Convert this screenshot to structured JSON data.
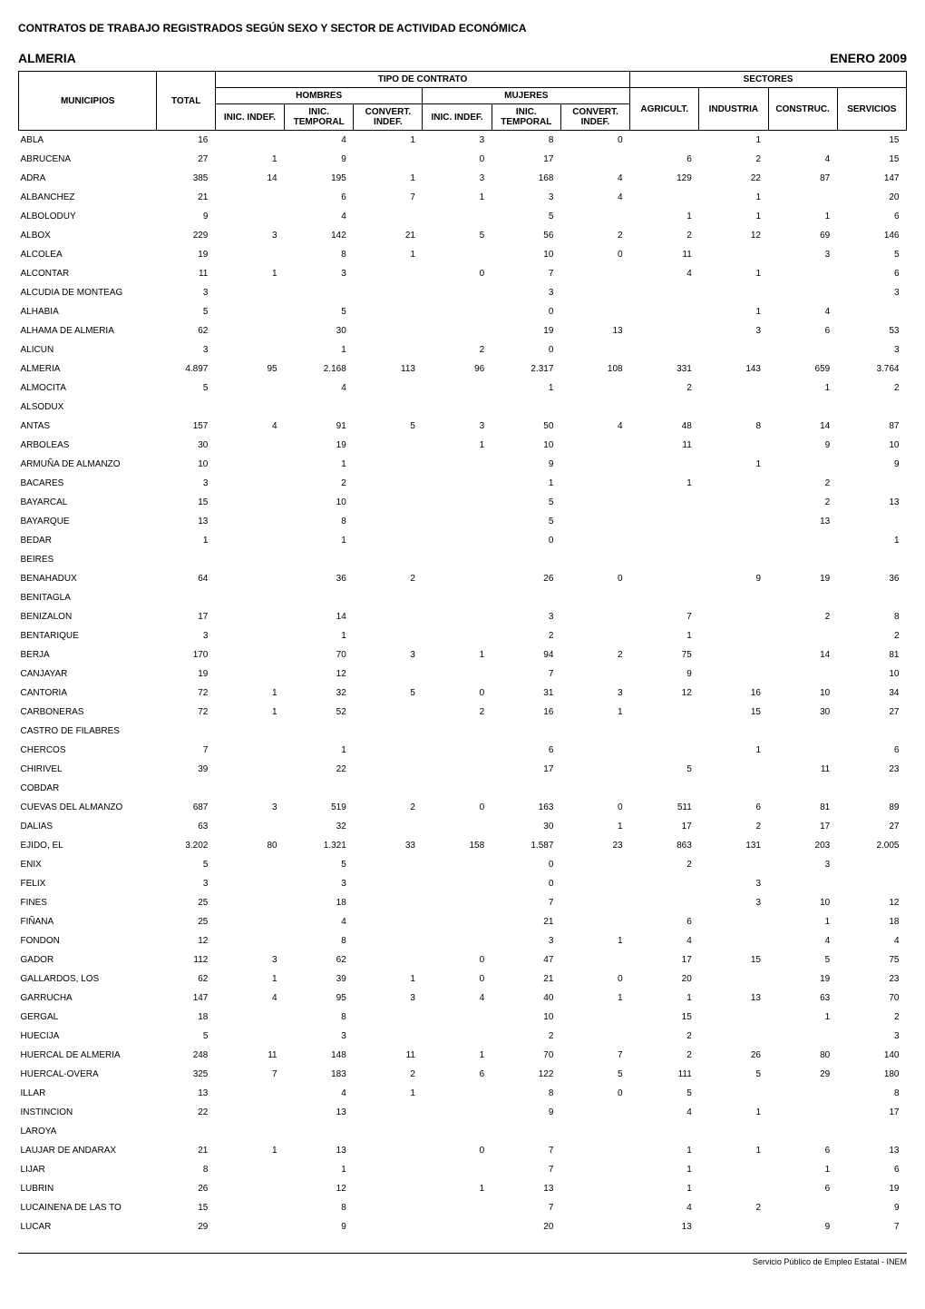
{
  "page_title": "CONTRATOS DE TRABAJO REGISTRADOS SEGÚN SEXO Y SECTOR DE ACTIVIDAD ECONÓMICA",
  "region": "ALMERIA",
  "period": "ENERO 2009",
  "footer": "Servicio Público de Empleo Estatal - INEM",
  "headers": {
    "tipo": "TIPO DE CONTRATO",
    "sectores": "SECTORES",
    "total": "TOTAL",
    "hombres": "HOMBRES",
    "mujeres": "MUJERES",
    "municipios": "MUNICIPIOS",
    "inic_indef": "INIC. INDEF.",
    "inic_temporal": "INIC. TEMPORAL",
    "convert_indef": "CONVERT. INDEF.",
    "agricult": "AGRICULT.",
    "industria": "INDUSTRIA",
    "construc": "CONSTRUC.",
    "servicios": "SERVICIOS"
  },
  "rows": [
    {
      "name": "ABLA",
      "total": 16,
      "h_ii": null,
      "h_it": 4,
      "h_ci": 1,
      "m_ii": 3,
      "m_it": 8,
      "m_ci": 0,
      "ag": null,
      "in": 1,
      "co": null,
      "se": 15
    },
    {
      "name": "ABRUCENA",
      "total": 27,
      "h_ii": 1,
      "h_it": 9,
      "h_ci": null,
      "m_ii": 0,
      "m_it": 17,
      "m_ci": null,
      "ag": 6,
      "in": 2,
      "co": 4,
      "se": 15
    },
    {
      "name": "ADRA",
      "total": 385,
      "h_ii": 14,
      "h_it": 195,
      "h_ci": 1,
      "m_ii": 3,
      "m_it": 168,
      "m_ci": 4,
      "ag": 129,
      "in": 22,
      "co": 87,
      "se": 147
    },
    {
      "name": "ALBANCHEZ",
      "total": 21,
      "h_ii": null,
      "h_it": 6,
      "h_ci": 7,
      "m_ii": 1,
      "m_it": 3,
      "m_ci": 4,
      "ag": null,
      "in": 1,
      "co": null,
      "se": 20
    },
    {
      "name": "ALBOLODUY",
      "total": 9,
      "h_ii": null,
      "h_it": 4,
      "h_ci": null,
      "m_ii": null,
      "m_it": 5,
      "m_ci": null,
      "ag": 1,
      "in": 1,
      "co": 1,
      "se": 6
    },
    {
      "name": "ALBOX",
      "total": 229,
      "h_ii": 3,
      "h_it": 142,
      "h_ci": 21,
      "m_ii": 5,
      "m_it": 56,
      "m_ci": 2,
      "ag": 2,
      "in": 12,
      "co": 69,
      "se": 146
    },
    {
      "name": "ALCOLEA",
      "total": 19,
      "h_ii": null,
      "h_it": 8,
      "h_ci": 1,
      "m_ii": null,
      "m_it": 10,
      "m_ci": 0,
      "ag": 11,
      "in": null,
      "co": 3,
      "se": 5
    },
    {
      "name": "ALCONTAR",
      "total": 11,
      "h_ii": 1,
      "h_it": 3,
      "h_ci": null,
      "m_ii": 0,
      "m_it": 7,
      "m_ci": null,
      "ag": 4,
      "in": 1,
      "co": null,
      "se": 6
    },
    {
      "name": "ALCUDIA DE MONTEAG",
      "total": 3,
      "h_ii": null,
      "h_it": null,
      "h_ci": null,
      "m_ii": null,
      "m_it": 3,
      "m_ci": null,
      "ag": null,
      "in": null,
      "co": null,
      "se": 3
    },
    {
      "name": "ALHABIA",
      "total": 5,
      "h_ii": null,
      "h_it": 5,
      "h_ci": null,
      "m_ii": null,
      "m_it": 0,
      "m_ci": null,
      "ag": null,
      "in": 1,
      "co": 4,
      "se": null
    },
    {
      "name": "ALHAMA DE ALMERIA",
      "total": 62,
      "h_ii": null,
      "h_it": 30,
      "h_ci": null,
      "m_ii": null,
      "m_it": 19,
      "m_ci": 13,
      "ag": null,
      "in": 3,
      "co": 6,
      "se": 53
    },
    {
      "name": "ALICUN",
      "total": 3,
      "h_ii": null,
      "h_it": 1,
      "h_ci": null,
      "m_ii": 2,
      "m_it": 0,
      "m_ci": null,
      "ag": null,
      "in": null,
      "co": null,
      "se": 3
    },
    {
      "name": "ALMERIA",
      "total": "4.897",
      "h_ii": 95,
      "h_it": "2.168",
      "h_ci": 113,
      "m_ii": 96,
      "m_it": "2.317",
      "m_ci": 108,
      "ag": 331,
      "in": 143,
      "co": 659,
      "se": "3.764"
    },
    {
      "name": "ALMOCITA",
      "total": 5,
      "h_ii": null,
      "h_it": 4,
      "h_ci": null,
      "m_ii": null,
      "m_it": 1,
      "m_ci": null,
      "ag": 2,
      "in": null,
      "co": 1,
      "se": 2
    },
    {
      "name": "ALSODUX",
      "total": null,
      "h_ii": null,
      "h_it": null,
      "h_ci": null,
      "m_ii": null,
      "m_it": null,
      "m_ci": null,
      "ag": null,
      "in": null,
      "co": null,
      "se": null
    },
    {
      "name": "ANTAS",
      "total": 157,
      "h_ii": 4,
      "h_it": 91,
      "h_ci": 5,
      "m_ii": 3,
      "m_it": 50,
      "m_ci": 4,
      "ag": 48,
      "in": 8,
      "co": 14,
      "se": 87
    },
    {
      "name": "ARBOLEAS",
      "total": 30,
      "h_ii": null,
      "h_it": 19,
      "h_ci": null,
      "m_ii": 1,
      "m_it": 10,
      "m_ci": null,
      "ag": 11,
      "in": null,
      "co": 9,
      "se": 10
    },
    {
      "name": "ARMUÑA DE ALMANZO",
      "total": 10,
      "h_ii": null,
      "h_it": 1,
      "h_ci": null,
      "m_ii": null,
      "m_it": 9,
      "m_ci": null,
      "ag": null,
      "in": 1,
      "co": null,
      "se": 9
    },
    {
      "name": "BACARES",
      "total": 3,
      "h_ii": null,
      "h_it": 2,
      "h_ci": null,
      "m_ii": null,
      "m_it": 1,
      "m_ci": null,
      "ag": 1,
      "in": null,
      "co": 2,
      "se": null
    },
    {
      "name": "BAYARCAL",
      "total": 15,
      "h_ii": null,
      "h_it": 10,
      "h_ci": null,
      "m_ii": null,
      "m_it": 5,
      "m_ci": null,
      "ag": null,
      "in": null,
      "co": 2,
      "se": 13
    },
    {
      "name": "BAYARQUE",
      "total": 13,
      "h_ii": null,
      "h_it": 8,
      "h_ci": null,
      "m_ii": null,
      "m_it": 5,
      "m_ci": null,
      "ag": null,
      "in": null,
      "co": 13,
      "se": null
    },
    {
      "name": "BEDAR",
      "total": 1,
      "h_ii": null,
      "h_it": 1,
      "h_ci": null,
      "m_ii": null,
      "m_it": 0,
      "m_ci": null,
      "ag": null,
      "in": null,
      "co": null,
      "se": 1
    },
    {
      "name": "BEIRES",
      "total": null,
      "h_ii": null,
      "h_it": null,
      "h_ci": null,
      "m_ii": null,
      "m_it": null,
      "m_ci": null,
      "ag": null,
      "in": null,
      "co": null,
      "se": null
    },
    {
      "name": "BENAHADUX",
      "total": 64,
      "h_ii": null,
      "h_it": 36,
      "h_ci": 2,
      "m_ii": null,
      "m_it": 26,
      "m_ci": 0,
      "ag": null,
      "in": 9,
      "co": 19,
      "se": 36
    },
    {
      "name": "BENITAGLA",
      "total": null,
      "h_ii": null,
      "h_it": null,
      "h_ci": null,
      "m_ii": null,
      "m_it": null,
      "m_ci": null,
      "ag": null,
      "in": null,
      "co": null,
      "se": null
    },
    {
      "name": "BENIZALON",
      "total": 17,
      "h_ii": null,
      "h_it": 14,
      "h_ci": null,
      "m_ii": null,
      "m_it": 3,
      "m_ci": null,
      "ag": 7,
      "in": null,
      "co": 2,
      "se": 8
    },
    {
      "name": "BENTARIQUE",
      "total": 3,
      "h_ii": null,
      "h_it": 1,
      "h_ci": null,
      "m_ii": null,
      "m_it": 2,
      "m_ci": null,
      "ag": 1,
      "in": null,
      "co": null,
      "se": 2
    },
    {
      "name": "BERJA",
      "total": 170,
      "h_ii": null,
      "h_it": 70,
      "h_ci": 3,
      "m_ii": 1,
      "m_it": 94,
      "m_ci": 2,
      "ag": 75,
      "in": null,
      "co": 14,
      "se": 81
    },
    {
      "name": "CANJAYAR",
      "total": 19,
      "h_ii": null,
      "h_it": 12,
      "h_ci": null,
      "m_ii": null,
      "m_it": 7,
      "m_ci": null,
      "ag": 9,
      "in": null,
      "co": null,
      "se": 10
    },
    {
      "name": "CANTORIA",
      "total": 72,
      "h_ii": 1,
      "h_it": 32,
      "h_ci": 5,
      "m_ii": 0,
      "m_it": 31,
      "m_ci": 3,
      "ag": 12,
      "in": 16,
      "co": 10,
      "se": 34
    },
    {
      "name": "CARBONERAS",
      "total": 72,
      "h_ii": 1,
      "h_it": 52,
      "h_ci": null,
      "m_ii": 2,
      "m_it": 16,
      "m_ci": 1,
      "ag": null,
      "in": 15,
      "co": 30,
      "se": 27
    },
    {
      "name": "CASTRO DE FILABRES",
      "total": null,
      "h_ii": null,
      "h_it": null,
      "h_ci": null,
      "m_ii": null,
      "m_it": null,
      "m_ci": null,
      "ag": null,
      "in": null,
      "co": null,
      "se": null
    },
    {
      "name": "CHERCOS",
      "total": 7,
      "h_ii": null,
      "h_it": 1,
      "h_ci": null,
      "m_ii": null,
      "m_it": 6,
      "m_ci": null,
      "ag": null,
      "in": 1,
      "co": null,
      "se": 6
    },
    {
      "name": "CHIRIVEL",
      "total": 39,
      "h_ii": null,
      "h_it": 22,
      "h_ci": null,
      "m_ii": null,
      "m_it": 17,
      "m_ci": null,
      "ag": 5,
      "in": null,
      "co": 11,
      "se": 23
    },
    {
      "name": "COBDAR",
      "total": null,
      "h_ii": null,
      "h_it": null,
      "h_ci": null,
      "m_ii": null,
      "m_it": null,
      "m_ci": null,
      "ag": null,
      "in": null,
      "co": null,
      "se": null
    },
    {
      "name": "CUEVAS DEL ALMANZO",
      "total": 687,
      "h_ii": 3,
      "h_it": 519,
      "h_ci": 2,
      "m_ii": 0,
      "m_it": 163,
      "m_ci": 0,
      "ag": 511,
      "in": 6,
      "co": 81,
      "se": 89
    },
    {
      "name": "DALIAS",
      "total": 63,
      "h_ii": null,
      "h_it": 32,
      "h_ci": null,
      "m_ii": null,
      "m_it": 30,
      "m_ci": 1,
      "ag": 17,
      "in": 2,
      "co": 17,
      "se": 27
    },
    {
      "name": "EJIDO, EL",
      "total": "3.202",
      "h_ii": 80,
      "h_it": "1.321",
      "h_ci": 33,
      "m_ii": 158,
      "m_it": "1.587",
      "m_ci": 23,
      "ag": 863,
      "in": 131,
      "co": 203,
      "se": "2.005"
    },
    {
      "name": "ENIX",
      "total": 5,
      "h_ii": null,
      "h_it": 5,
      "h_ci": null,
      "m_ii": null,
      "m_it": 0,
      "m_ci": null,
      "ag": 2,
      "in": null,
      "co": 3,
      "se": null
    },
    {
      "name": "FELIX",
      "total": 3,
      "h_ii": null,
      "h_it": 3,
      "h_ci": null,
      "m_ii": null,
      "m_it": 0,
      "m_ci": null,
      "ag": null,
      "in": 3,
      "co": null,
      "se": null
    },
    {
      "name": "FINES",
      "total": 25,
      "h_ii": null,
      "h_it": 18,
      "h_ci": null,
      "m_ii": null,
      "m_it": 7,
      "m_ci": null,
      "ag": null,
      "in": 3,
      "co": 10,
      "se": 12
    },
    {
      "name": "FIÑANA",
      "total": 25,
      "h_ii": null,
      "h_it": 4,
      "h_ci": null,
      "m_ii": null,
      "m_it": 21,
      "m_ci": null,
      "ag": 6,
      "in": null,
      "co": 1,
      "se": 18
    },
    {
      "name": "FONDON",
      "total": 12,
      "h_ii": null,
      "h_it": 8,
      "h_ci": null,
      "m_ii": null,
      "m_it": 3,
      "m_ci": 1,
      "ag": 4,
      "in": null,
      "co": 4,
      "se": 4
    },
    {
      "name": "GADOR",
      "total": 112,
      "h_ii": 3,
      "h_it": 62,
      "h_ci": null,
      "m_ii": 0,
      "m_it": 47,
      "m_ci": null,
      "ag": 17,
      "in": 15,
      "co": 5,
      "se": 75
    },
    {
      "name": "GALLARDOS, LOS",
      "total": 62,
      "h_ii": 1,
      "h_it": 39,
      "h_ci": 1,
      "m_ii": 0,
      "m_it": 21,
      "m_ci": 0,
      "ag": 20,
      "in": null,
      "co": 19,
      "se": 23
    },
    {
      "name": "GARRUCHA",
      "total": 147,
      "h_ii": 4,
      "h_it": 95,
      "h_ci": 3,
      "m_ii": 4,
      "m_it": 40,
      "m_ci": 1,
      "ag": 1,
      "in": 13,
      "co": 63,
      "se": 70
    },
    {
      "name": "GERGAL",
      "total": 18,
      "h_ii": null,
      "h_it": 8,
      "h_ci": null,
      "m_ii": null,
      "m_it": 10,
      "m_ci": null,
      "ag": 15,
      "in": null,
      "co": 1,
      "se": 2
    },
    {
      "name": "HUECIJA",
      "total": 5,
      "h_ii": null,
      "h_it": 3,
      "h_ci": null,
      "m_ii": null,
      "m_it": 2,
      "m_ci": null,
      "ag": 2,
      "in": null,
      "co": null,
      "se": 3
    },
    {
      "name": "HUERCAL DE ALMERIA",
      "total": 248,
      "h_ii": 11,
      "h_it": 148,
      "h_ci": 11,
      "m_ii": 1,
      "m_it": 70,
      "m_ci": 7,
      "ag": 2,
      "in": 26,
      "co": 80,
      "se": 140
    },
    {
      "name": "HUERCAL-OVERA",
      "total": 325,
      "h_ii": 7,
      "h_it": 183,
      "h_ci": 2,
      "m_ii": 6,
      "m_it": 122,
      "m_ci": 5,
      "ag": 111,
      "in": 5,
      "co": 29,
      "se": 180
    },
    {
      "name": "ILLAR",
      "total": 13,
      "h_ii": null,
      "h_it": 4,
      "h_ci": 1,
      "m_ii": null,
      "m_it": 8,
      "m_ci": 0,
      "ag": 5,
      "in": null,
      "co": null,
      "se": 8
    },
    {
      "name": "INSTINCION",
      "total": 22,
      "h_ii": null,
      "h_it": 13,
      "h_ci": null,
      "m_ii": null,
      "m_it": 9,
      "m_ci": null,
      "ag": 4,
      "in": 1,
      "co": null,
      "se": 17
    },
    {
      "name": "LAROYA",
      "total": null,
      "h_ii": null,
      "h_it": null,
      "h_ci": null,
      "m_ii": null,
      "m_it": null,
      "m_ci": null,
      "ag": null,
      "in": null,
      "co": null,
      "se": null
    },
    {
      "name": "LAUJAR DE ANDARAX",
      "total": 21,
      "h_ii": 1,
      "h_it": 13,
      "h_ci": null,
      "m_ii": 0,
      "m_it": 7,
      "m_ci": null,
      "ag": 1,
      "in": 1,
      "co": 6,
      "se": 13
    },
    {
      "name": "LIJAR",
      "total": 8,
      "h_ii": null,
      "h_it": 1,
      "h_ci": null,
      "m_ii": null,
      "m_it": 7,
      "m_ci": null,
      "ag": 1,
      "in": null,
      "co": 1,
      "se": 6
    },
    {
      "name": "LUBRIN",
      "total": 26,
      "h_ii": null,
      "h_it": 12,
      "h_ci": null,
      "m_ii": 1,
      "m_it": 13,
      "m_ci": null,
      "ag": 1,
      "in": null,
      "co": 6,
      "se": 19
    },
    {
      "name": "LUCAINENA DE LAS TO",
      "total": 15,
      "h_ii": null,
      "h_it": 8,
      "h_ci": null,
      "m_ii": null,
      "m_it": 7,
      "m_ci": null,
      "ag": 4,
      "in": 2,
      "co": null,
      "se": 9
    },
    {
      "name": "LUCAR",
      "total": 29,
      "h_ii": null,
      "h_it": 9,
      "h_ci": null,
      "m_ii": null,
      "m_it": 20,
      "m_ci": null,
      "ag": 13,
      "in": null,
      "co": 9,
      "se": 7
    }
  ]
}
